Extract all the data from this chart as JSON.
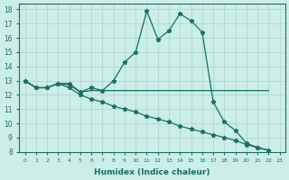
{
  "xlabel": "Humidex (Indice chaleur)",
  "background_color": "#cceee8",
  "grid_color": "#aad4ce",
  "line_color": "#1a6e62",
  "xlim": [
    -0.5,
    23.5
  ],
  "ylim": [
    8,
    18.4
  ],
  "xticks": [
    0,
    1,
    2,
    3,
    4,
    5,
    6,
    7,
    8,
    9,
    10,
    11,
    12,
    13,
    14,
    15,
    16,
    17,
    18,
    19,
    20,
    21,
    22,
    23
  ],
  "yticks": [
    8,
    9,
    10,
    11,
    12,
    13,
    14,
    15,
    16,
    17,
    18
  ],
  "x": [
    0,
    1,
    2,
    3,
    4,
    5,
    6,
    7,
    8,
    9,
    10,
    11,
    12,
    13,
    14,
    15,
    16,
    17,
    18,
    19,
    20,
    21,
    22
  ],
  "line1_y": [
    13.0,
    12.5,
    12.5,
    12.8,
    12.8,
    12.2,
    12.5,
    12.3,
    13.0,
    14.3,
    15.0,
    17.9,
    15.9,
    16.5,
    17.7,
    17.2,
    16.4,
    11.5,
    10.1,
    9.5,
    8.6,
    8.3,
    8.1
  ],
  "line2_y": [
    13.0,
    12.5,
    12.5,
    12.8,
    12.7,
    12.2,
    12.3,
    12.3,
    12.3,
    12.3,
    12.3,
    12.3,
    12.3,
    12.3,
    12.3,
    12.3,
    12.3,
    12.3,
    12.3,
    12.3,
    12.3,
    12.3,
    12.3
  ],
  "line3_y": [
    13.0,
    12.5,
    12.5,
    12.8,
    12.5,
    12.0,
    11.7,
    11.5,
    11.2,
    11.0,
    10.8,
    10.5,
    10.3,
    10.1,
    9.8,
    9.6,
    9.4,
    9.2,
    9.0,
    8.8,
    8.5,
    8.3,
    8.1
  ]
}
